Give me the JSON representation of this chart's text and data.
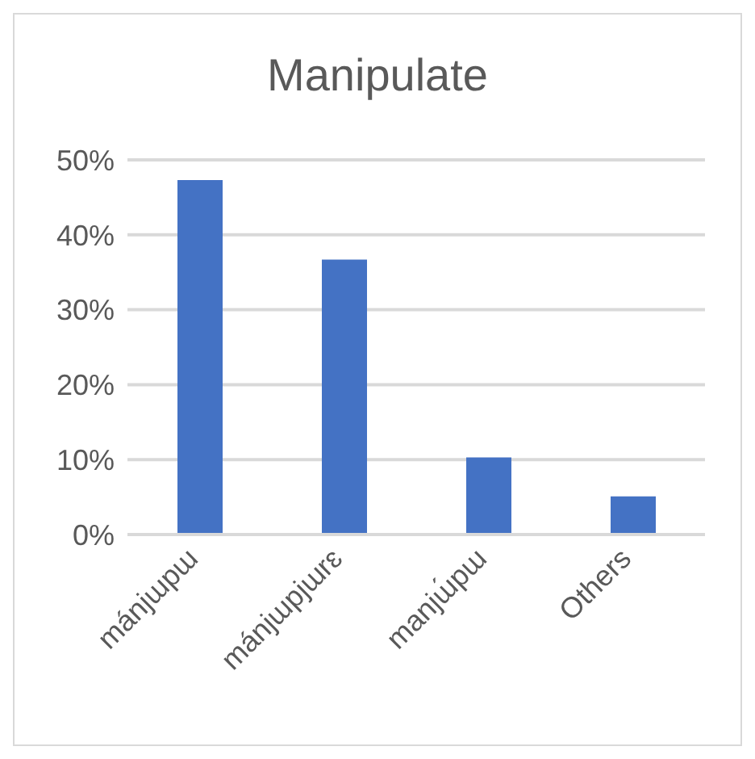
{
  "chart_data": {
    "type": "bar",
    "title": "Manipulate",
    "categories": [
      "mánjɯpɯ",
      "mánjɯpjɯrɛ",
      "manjɯ́pɯ",
      "Others"
    ],
    "values": [
      47.3,
      36.7,
      10.3,
      5.1
    ],
    "color": "#4472c4",
    "ylim": [
      0,
      50
    ],
    "yticks": [
      {
        "value": 0,
        "label": "0%"
      },
      {
        "value": 10,
        "label": "10%"
      },
      {
        "value": 20,
        "label": "20%"
      },
      {
        "value": 30,
        "label": "30%"
      },
      {
        "value": 40,
        "label": "40%"
      },
      {
        "value": 50,
        "label": "50%"
      }
    ],
    "grid": "y",
    "legend": false
  }
}
